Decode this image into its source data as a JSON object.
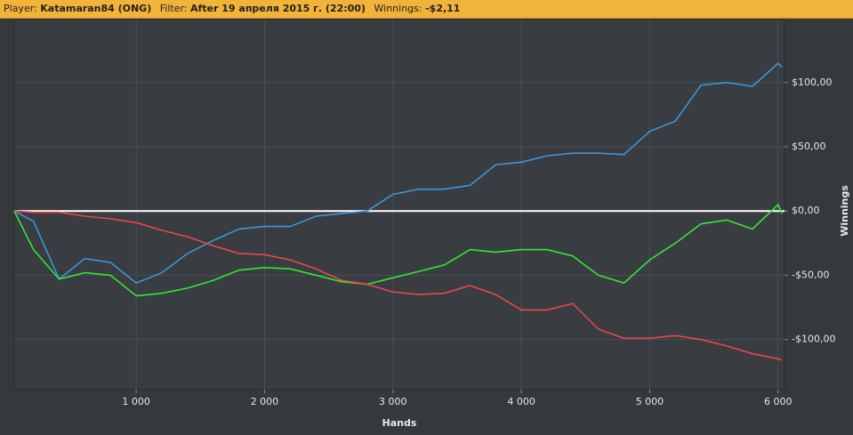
{
  "header": {
    "player_label": "Player:",
    "player": "Katamaran84 (ONG)",
    "filter_label": "Filter:",
    "filter": "After 19 апреля 2015 г. (22:00)",
    "winnings_label": "Winnings:",
    "winnings": "-$2,11"
  },
  "chart_data": {
    "type": "line",
    "x_label": "Hands",
    "y_label": "Winnings",
    "x": [
      50,
      200,
      400,
      600,
      800,
      1000,
      1200,
      1400,
      1600,
      1800,
      2000,
      2200,
      2400,
      2600,
      2800,
      3000,
      3200,
      3400,
      3600,
      3800,
      4000,
      4200,
      4400,
      4600,
      4800,
      5000,
      5200,
      5400,
      5600,
      5800,
      6000,
      6030
    ],
    "series": [
      {
        "color": "#3b97d8",
        "values": [
          0,
          -8,
          -53,
          -37,
          -40,
          -56,
          -48,
          -33,
          -23,
          -14,
          -12,
          -12,
          -4,
          -2,
          0,
          13,
          17,
          17,
          20,
          36,
          38,
          43,
          45,
          45,
          44,
          62,
          70,
          98,
          100,
          97,
          115,
          112
        ]
      },
      {
        "color": "#33e633",
        "values": [
          0,
          -30,
          -53,
          -48,
          -50,
          -66,
          -64,
          -60,
          -54,
          -46,
          -44,
          -45,
          -50,
          -55,
          -57,
          -52,
          -47,
          -42,
          -30,
          -32,
          -30,
          -30,
          -35,
          -50,
          -56,
          -38,
          -25,
          -10,
          -7,
          -14,
          5,
          -2
        ]
      },
      {
        "color": "#e8474a",
        "values": [
          0,
          -1,
          -1,
          -4,
          -6,
          -9,
          -15,
          -20,
          -27,
          -33,
          -34,
          -38,
          -45,
          -54,
          -57,
          -63,
          -65,
          -64,
          -58,
          -65,
          -77,
          -77,
          -72,
          -92,
          -99,
          -99,
          -97,
          -100,
          -105,
          -111,
          -115,
          -116
        ]
      }
    ],
    "hline": {
      "value": 0,
      "color": "#ffffff"
    },
    "xlim": [
      50,
      6050
    ],
    "ylim": [
      -139,
      149
    ],
    "xticks": [
      {
        "value": 1000,
        "label": "1 000"
      },
      {
        "value": 2000,
        "label": "2 000"
      },
      {
        "value": 3000,
        "label": "3 000"
      },
      {
        "value": 4000,
        "label": "4 000"
      },
      {
        "value": 5000,
        "label": "5 000"
      },
      {
        "value": 6000,
        "label": "6 000"
      }
    ],
    "yticks": [
      {
        "value": -100,
        "label": "-$100,00"
      },
      {
        "value": -50,
        "label": "-$50,00"
      },
      {
        "value": 0,
        "label": "$0,00"
      },
      {
        "value": 50,
        "label": "$50,00"
      },
      {
        "value": 100,
        "label": "$100,00"
      }
    ],
    "grid": true
  }
}
